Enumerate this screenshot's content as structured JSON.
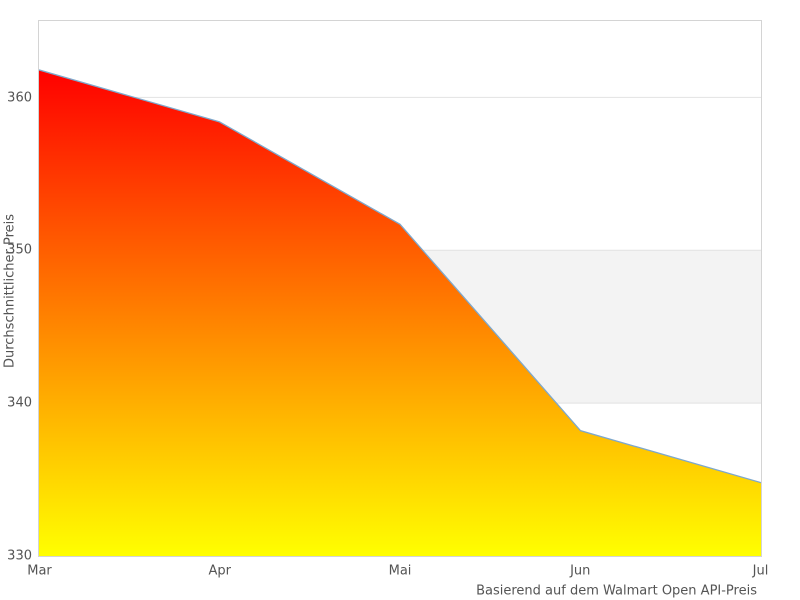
{
  "chart_data": {
    "type": "area",
    "x": [
      "Mar",
      "Apr",
      "Mai",
      "Jun",
      "Jul"
    ],
    "values": [
      361.8,
      358.4,
      351.7,
      338.2,
      334.8
    ],
    "title": "",
    "xlabel": "",
    "ylabel": "Durchschnittlicher Preis",
    "caption": "Basierend auf dem Walmart Open API-Preis",
    "ylim": [
      330,
      365
    ],
    "yticks": [
      330,
      340,
      350,
      360
    ],
    "grid": true,
    "legend": "none",
    "highlight_band": {
      "from": 340,
      "to": 350,
      "color": "#f3f3f3"
    },
    "colors": {
      "gradient_top": "#ff0000",
      "gradient_bottom": "#ffff00",
      "line": "#7ea8cc",
      "gridline": "#e2e2e2",
      "frame": "#d4d4d4",
      "text": "#545454"
    }
  }
}
